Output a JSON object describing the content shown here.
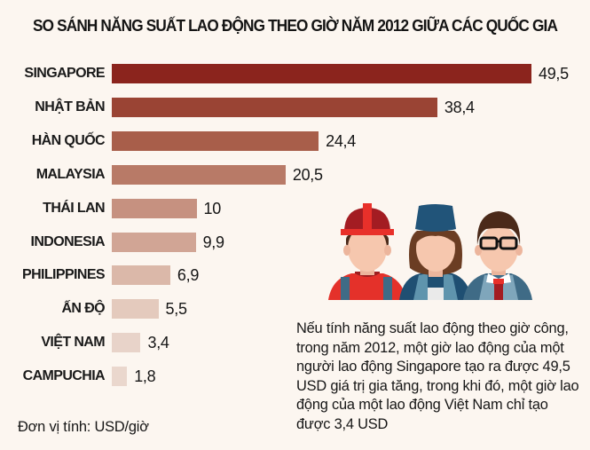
{
  "title": "SO SÁNH NĂNG SUẤT LAO ĐỘNG THEO GIỜ NĂM 2012 GIỮA CÁC QUỐC GIA",
  "unit_label": "Đơn vị tính: USD/giờ",
  "note": "Nếu tính năng suất lao động theo giờ công, trong năm 2012, một giờ lao động của một người lao động Singapore tạo ra được 49,5 USD giá trị gia tăng, trong khi đó, một giờ lao động của một lao động Việt Nam chỉ tạo được 3,4 USD",
  "illustration": "three-workers-illustration",
  "rows": [
    {
      "label": "SINGAPORE",
      "value": 49.5,
      "display": "49,5",
      "color": "#8b241d"
    },
    {
      "label": "NHẬT BẢN",
      "value": 38.4,
      "display": "38,4",
      "color": "#9a4434"
    },
    {
      "label": "HÀN QUỐC",
      "value": 24.4,
      "display": "24,4",
      "color": "#a85e4a"
    },
    {
      "label": "MALAYSIA",
      "value": 20.5,
      "display": "20,5",
      "color": "#b87a67"
    },
    {
      "label": "THÁI LAN",
      "value": 10,
      "display": "10",
      "color": "#c69180"
    },
    {
      "label": "INDONESIA",
      "value": 9.9,
      "display": "9,9",
      "color": "#d1a595"
    },
    {
      "label": "PHILIPPINES",
      "value": 6.9,
      "display": "6,9",
      "color": "#dbb8a9"
    },
    {
      "label": "ẤN ĐỘ",
      "value": 5.5,
      "display": "5,5",
      "color": "#e4cabd"
    },
    {
      "label": "VIỆT NAM",
      "value": 3.4,
      "display": "3,4",
      "color": "#e8d3c9"
    },
    {
      "label": "CAMPUCHIA",
      "value": 1.8,
      "display": "1,8",
      "color": "#ead7cd"
    }
  ],
  "chart_data": {
    "type": "bar",
    "orientation": "horizontal",
    "title": "SO SÁNH NĂNG SUẤT LAO ĐỘNG THEO GIỜ NĂM 2012 GIỮA CÁC QUỐC GIA",
    "categories": [
      "SINGAPORE",
      "NHẬT BẢN",
      "HÀN QUỐC",
      "MALAYSIA",
      "THÁI LAN",
      "INDONESIA",
      "PHILIPPINES",
      "ẤN ĐỘ",
      "VIỆT NAM",
      "CAMPUCHIA"
    ],
    "values": [
      49.5,
      38.4,
      24.4,
      20.5,
      10,
      9.9,
      6.9,
      5.5,
      3.4,
      1.8
    ],
    "data_labels": [
      "49,5",
      "38,4",
      "24,4",
      "20,5",
      "10",
      "9,9",
      "6,9",
      "5,5",
      "3,4",
      "1,8"
    ],
    "xlabel": "",
    "ylabel": "",
    "unit": "USD/giờ",
    "grid": false,
    "legend": null,
    "annotations": [
      "Đơn vị tính: USD/giờ",
      "Nếu tính năng suất lao động theo giờ công, trong năm 2012, một giờ lao động của một người lao động Singapore tạo ra được 49,5 USD giá trị gia tăng, trong khi đó, một giờ lao động của một lao động Việt Nam chỉ tạo được 3,4 USD"
    ]
  }
}
